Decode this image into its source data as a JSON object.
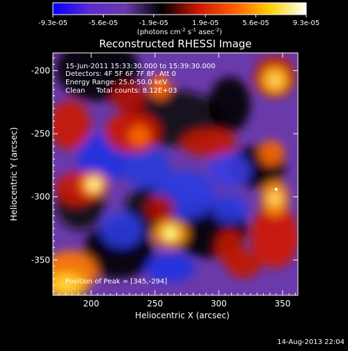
{
  "colorbar": {
    "ticks": [
      "-9.3e-05",
      "-5.6e-05",
      "-1.9e-05",
      "1.9e-05",
      "5.6e-05",
      "9.3e-05"
    ],
    "range": [
      -9.3e-05,
      9.3e-05
    ],
    "unit_parts": {
      "a": "(photons cm",
      "a_sup": "-2",
      "b": " s",
      "b_sup": "-1",
      "c": " asec",
      "c_sup": "-2",
      "d": ")"
    }
  },
  "chart_data": {
    "type": "heatmap",
    "title": "Reconstructed RHESSI Image",
    "xlabel": "Heliocentric X (arcsec)",
    "ylabel": "Heliocentric Y (arcsec)",
    "xlim": [
      170,
      362
    ],
    "ylim": [
      -378,
      -186
    ],
    "x_ticks": [
      200,
      250,
      300,
      350
    ],
    "y_ticks": [
      -200,
      -250,
      -300,
      -350
    ],
    "annotations": [
      "15-Jun-2011 15:33:30.000 to 15:39:30.000",
      "Detectors: 4F 5F 6F 7F 8F, Att 0",
      "Energy Range: 25.0-50.0 keV",
      "Clean     Total counts: 8.12E+03",
      "Position of Peak = [345,-294]"
    ],
    "peak": {
      "x": 345,
      "y": -294
    },
    "colormap": [
      "#0000ff",
      "#5a2ad0",
      "#6a3aaa",
      "#000000",
      "#cc1500",
      "#ff5a00",
      "#ffd000",
      "#ffffff"
    ]
  },
  "footer": {
    "date": "14-Aug-2013 22:04"
  }
}
